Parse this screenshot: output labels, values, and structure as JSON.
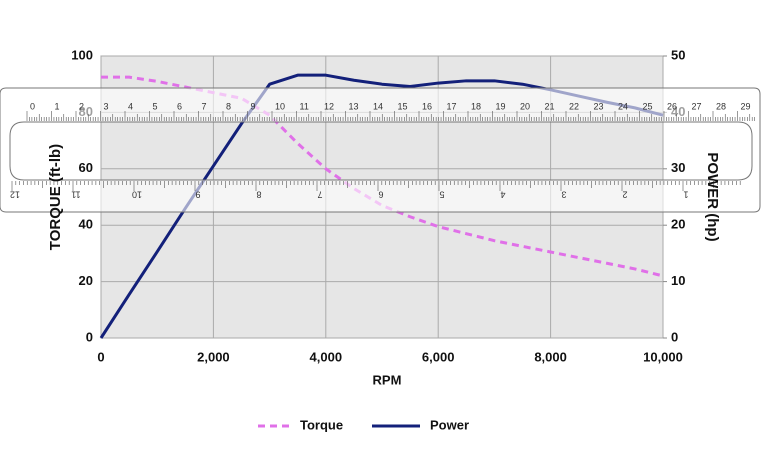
{
  "chart_data": {
    "type": "line",
    "x_label": "RPM",
    "y_label": "TORQUE (ft-lb)",
    "y2_label": "POWER (hp)",
    "x": [
      0,
      500,
      1000,
      1500,
      2000,
      2500,
      3000,
      3500,
      4000,
      4500,
      5000,
      5500,
      6000,
      6500,
      7000,
      7500,
      8000,
      8500,
      9000,
      9500,
      10000
    ],
    "series": [
      {
        "name": "Torque",
        "color": "#e070e8",
        "dash": true,
        "values": [
          92.5,
          92.5,
          91,
          89,
          87,
          85,
          79,
          69,
          60,
          53,
          47,
          43,
          39.5,
          37,
          34.5,
          32.5,
          30.5,
          28.5,
          26.5,
          24.5,
          22
        ]
      },
      {
        "name": "Power",
        "color": "#13207a",
        "axis": "y2",
        "values": [
          0,
          7.7,
          15.3,
          23,
          30.5,
          38,
          45,
          46.6,
          46.6,
          45.7,
          45,
          44.6,
          45.2,
          45.6,
          45.6,
          45,
          44,
          42.9,
          41.8,
          40.8,
          39.5
        ]
      }
    ],
    "xlim": [
      0,
      10000
    ],
    "xticks": [
      0,
      {
        "value": 2000,
        "label": "2,000"
      },
      {
        "value": 4000,
        "label": "4,000"
      },
      {
        "value": 6000,
        "label": "6,000"
      },
      {
        "value": 8000,
        "label": "8,000"
      },
      {
        "value": 10000,
        "label": "10,000"
      }
    ],
    "ylim": [
      0,
      100
    ],
    "yticks": [
      0,
      20,
      40,
      60,
      80,
      100
    ],
    "y2lim": [
      0,
      50
    ],
    "y2ticks": [
      0,
      10,
      20,
      30,
      40,
      50
    ],
    "grid": true,
    "legend": "bottom",
    "ruler": {
      "top_labels": [
        "0",
        "1",
        "2",
        "3",
        "4",
        "5",
        "6",
        "7",
        "8",
        "9",
        "10",
        "11",
        "12",
        "13",
        "14",
        "15",
        "16",
        "17",
        "18",
        "19",
        "20",
        "21",
        "22",
        "23",
        "24",
        "25",
        "26",
        "27",
        "28",
        "29"
      ],
      "bottom_labels": [
        "12",
        "11",
        "10",
        "9",
        "8",
        "7",
        "6",
        "5",
        "4",
        "3",
        "2",
        "1"
      ]
    }
  }
}
